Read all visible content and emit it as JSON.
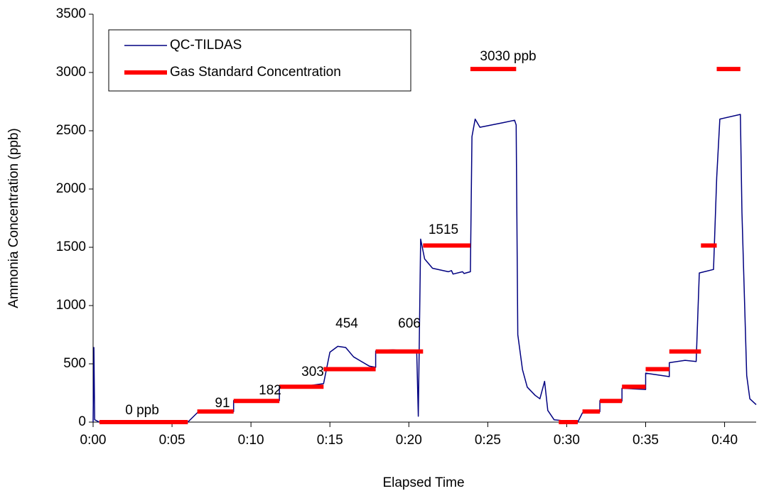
{
  "chart_data": {
    "type": "line",
    "x_label": "Elapsed Time",
    "y_label": "Ammonia Concentration (ppb)",
    "xlim": [
      0,
      42
    ],
    "ylim": [
      0,
      3500
    ],
    "xticks": [
      {
        "value": 0,
        "label": "0:00"
      },
      {
        "value": 5,
        "label": "0:05"
      },
      {
        "value": 10,
        "label": "0:10"
      },
      {
        "value": 15,
        "label": "0:15"
      },
      {
        "value": 20,
        "label": "0:20"
      },
      {
        "value": 25,
        "label": "0:25"
      },
      {
        "value": 30,
        "label": "0:30"
      },
      {
        "value": 35,
        "label": "0:35"
      },
      {
        "value": 40,
        "label": "0:40"
      }
    ],
    "yticks": [
      0,
      500,
      1000,
      1500,
      2000,
      2500,
      3000,
      3500
    ],
    "legend": "top-left",
    "series": [
      {
        "name": "QC-TILDAS",
        "color": "#000080",
        "width": 1.5,
        "x": [
          0,
          0.05,
          0.1,
          0.4,
          6.0,
          6.6,
          8.9,
          8.9,
          11.8,
          11.8,
          13.5,
          14.6,
          15,
          15.5,
          16,
          16.5,
          17.5,
          17.9,
          17.9,
          19,
          20.5,
          20.6,
          20.75,
          21,
          21.5,
          22.5,
          22.7,
          22.8,
          23.4,
          23.5,
          23.9,
          24,
          24.2,
          24.5,
          26,
          26.7,
          26.8,
          26.9,
          27.2,
          27.5,
          28,
          28.3,
          28.6,
          28.8,
          29.2,
          30.7,
          31,
          32.1,
          32.1,
          33.5,
          33.5,
          35,
          35,
          36.5,
          36.5,
          37.5,
          38.2,
          38.4,
          39.3,
          39.5,
          39.7,
          41.0,
          41.1,
          41.4,
          41.6,
          42
        ],
        "values": [
          0,
          640,
          20,
          0,
          0,
          80,
          90,
          185,
          185,
          300,
          310,
          330,
          600,
          650,
          640,
          560,
          480,
          470,
          610,
          620,
          600,
          50,
          1570,
          1400,
          1320,
          1290,
          1300,
          1270,
          1290,
          1275,
          1290,
          2450,
          2600,
          2530,
          2570,
          2590,
          2550,
          750,
          450,
          300,
          230,
          200,
          350,
          100,
          20,
          0,
          80,
          90,
          185,
          180,
          290,
          280,
          420,
          390,
          510,
          530,
          520,
          1280,
          1310,
          2100,
          2600,
          2640,
          1800,
          400,
          200,
          150
        ]
      },
      {
        "name": "Gas Standard Concentration",
        "color": "#ff0000",
        "width": 6,
        "x": [
          0.4,
          6.0,
          null,
          6.6,
          8.9,
          null,
          8.9,
          11.8,
          null,
          11.8,
          14.6,
          null,
          14.6,
          17.9,
          null,
          17.9,
          20.9,
          null,
          20.9,
          23.9,
          null,
          23.9,
          26.8,
          null,
          29.5,
          30.7,
          null,
          31.0,
          32.1,
          null,
          32.1,
          33.5,
          null,
          33.5,
          35.0,
          null,
          35.0,
          36.5,
          null,
          36.5,
          38.5,
          null,
          38.5,
          39.5,
          null,
          39.5,
          41.0
        ],
        "values": [
          0,
          0,
          null,
          91,
          91,
          null,
          182,
          182,
          null,
          303,
          303,
          null,
          454,
          454,
          null,
          606,
          606,
          null,
          1515,
          1515,
          null,
          3030,
          3030,
          null,
          0,
          0,
          null,
          91,
          91,
          null,
          182,
          182,
          null,
          303,
          303,
          null,
          454,
          454,
          null,
          606,
          606,
          null,
          1515,
          1515,
          null,
          3030,
          3030
        ]
      }
    ],
    "annotations": [
      "0 ppb",
      "91",
      "182",
      "303",
      "454",
      "606",
      "1515",
      "3030 ppb"
    ]
  }
}
